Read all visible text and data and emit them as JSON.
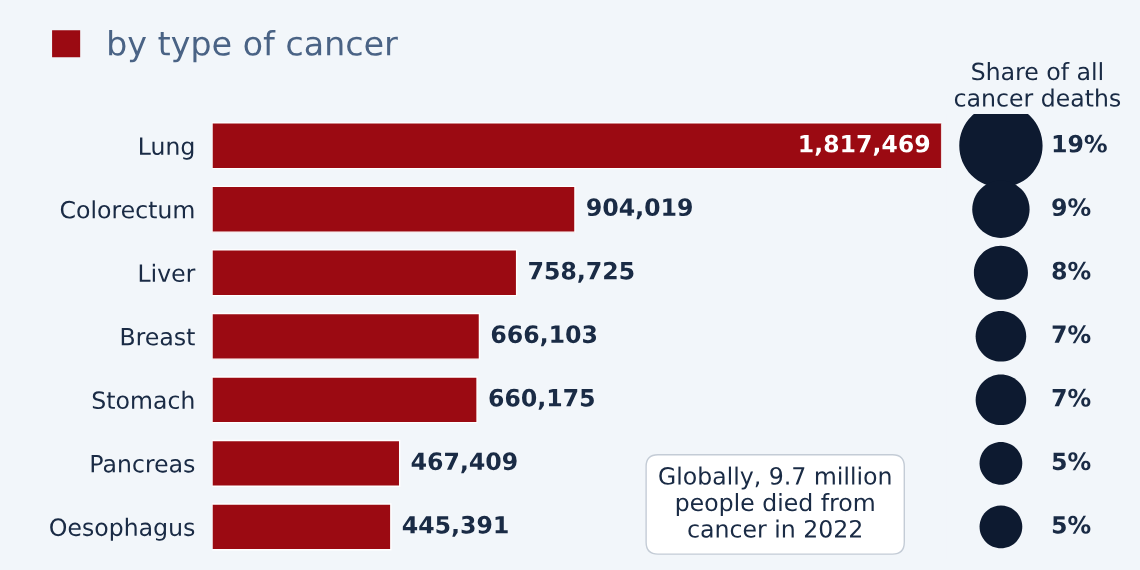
{
  "chart_data": [
    {
      "type": "bar",
      "orientation": "horizontal",
      "categories": [
        "Lung",
        "Colorectum",
        "Liver",
        "Breast",
        "Stomach",
        "Pancreas",
        "Oesophagus"
      ],
      "series": [
        {
          "name": "by type of cancer",
          "color": "#9b0a12",
          "values": [
            1817469,
            904019,
            758725,
            666103,
            660175,
            467409,
            445391
          ],
          "value_labels": [
            "1,817,469",
            "904,019",
            "758,725",
            "666,103",
            "660,175",
            "467,409",
            "445,391"
          ]
        }
      ],
      "legend": "top left",
      "annotations": [
        "Globally, 9.7 million people died from cancer in 2022"
      ]
    },
    {
      "type": "other",
      "title": "Share of all cancer deaths",
      "categories": [
        null,
        null,
        null,
        null,
        null,
        null,
        null
      ],
      "values": [
        19,
        9,
        8,
        7,
        7,
        5,
        5
      ],
      "value_labels": [
        "19%",
        "9%",
        "8%",
        "7%",
        "7%",
        "5%",
        "5%"
      ],
      "colors": [
        "#0d1a30",
        "#0d1a30",
        "#0d1a30",
        "#0d1a30",
        "#0d1a30",
        "#0d1a30",
        "#0d1a30"
      ]
    }
  ]
}
